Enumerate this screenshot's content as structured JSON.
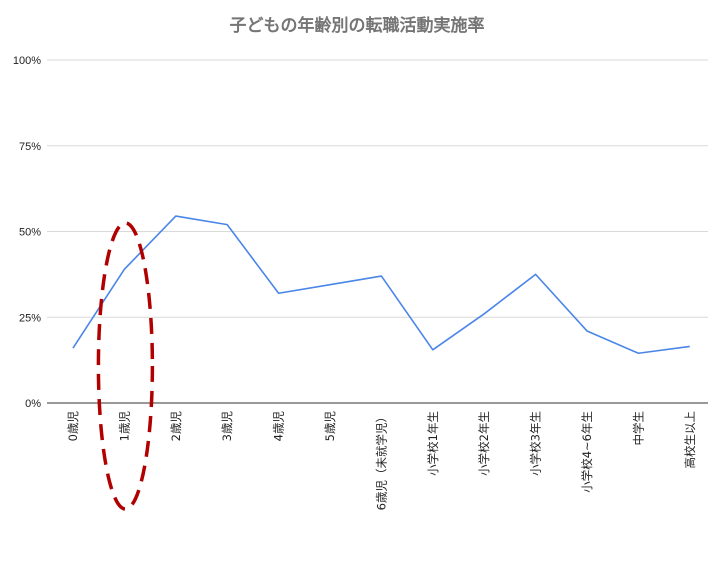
{
  "chart_data": {
    "type": "line",
    "title": "子どもの年齢別の転職活動実施率",
    "categories": [
      "0歳児",
      "1歳児",
      "2歳児",
      "3歳児",
      "4歳児",
      "5歳児",
      "6歳児（未就学児）",
      "小学校1年生",
      "小学校2年生",
      "小学校3年生",
      "小学校4~6年生",
      "中学生",
      "高校生以上"
    ],
    "series": [
      {
        "values": [
          16,
          39,
          54.5,
          52,
          32,
          34.5,
          37,
          15.5,
          26,
          37.5,
          21,
          14.5,
          16.5
        ]
      }
    ],
    "ylim": [
      0,
      100
    ],
    "yticks": [
      "0%",
      "25%",
      "50%",
      "75%",
      "100%"
    ],
    "xlabel": "",
    "ylabel": "",
    "grid": true,
    "annotation": {
      "shape": "dashed-ellipse",
      "category": "1歳児"
    }
  },
  "colors": {
    "series": "#4a86e8",
    "annotation": "#b00000"
  }
}
